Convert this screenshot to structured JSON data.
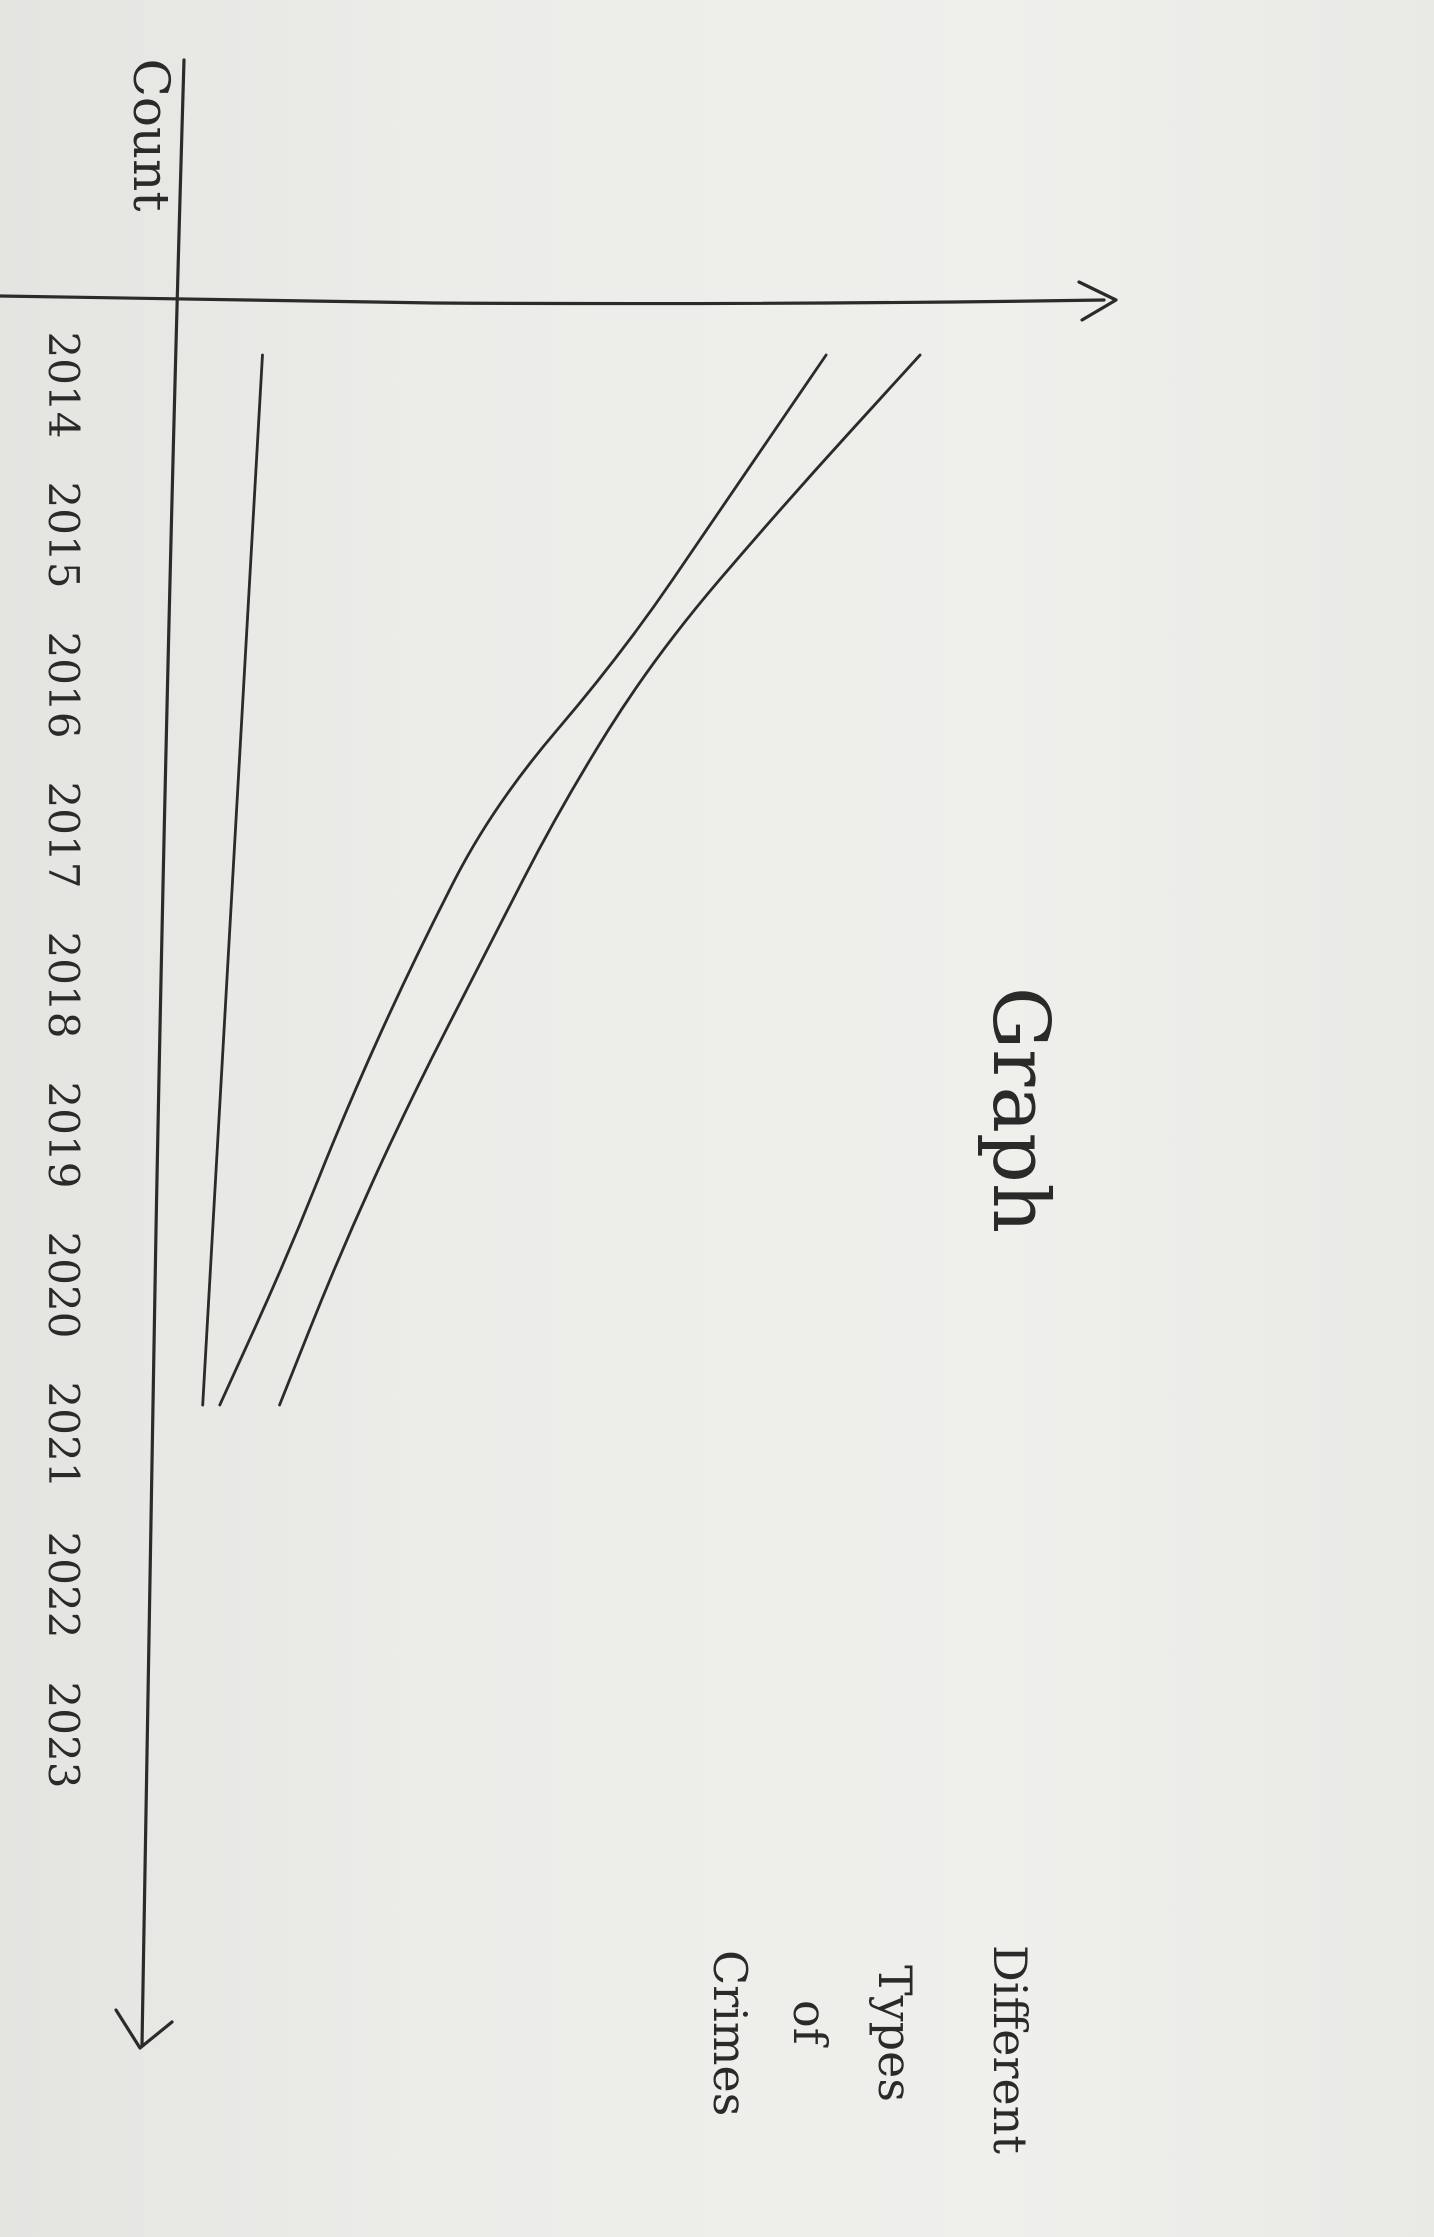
{
  "chart_data": {
    "type": "line",
    "title": "Graph",
    "xlabel": "",
    "ylabel": "Count",
    "x": [
      "2014",
      "2015",
      "2016",
      "2017",
      "2018",
      "2019",
      "2020",
      "2021",
      "2022",
      "2023"
    ],
    "ylim": [
      0,
      10
    ],
    "grid": false,
    "legend": {
      "placement": "right",
      "lines": [
        "Different",
        "Types",
        "of",
        "Crimes"
      ]
    },
    "series": [
      {
        "values": [
          8.9,
          7.3,
          5.8,
          4.7,
          3.8,
          2.9,
          2.1,
          1.4,
          null,
          null
        ]
      },
      {
        "values": [
          7.8,
          6.6,
          5.4,
          3.9,
          3.0,
          2.2,
          1.5,
          0.7,
          null,
          null
        ]
      },
      {
        "values": [
          1.2,
          1.1,
          1.0,
          0.9,
          0.8,
          0.7,
          0.6,
          0.5,
          null,
          null
        ]
      }
    ],
    "colors": {
      "ink": "#2b2b2b",
      "paper": "#ededeb"
    }
  }
}
